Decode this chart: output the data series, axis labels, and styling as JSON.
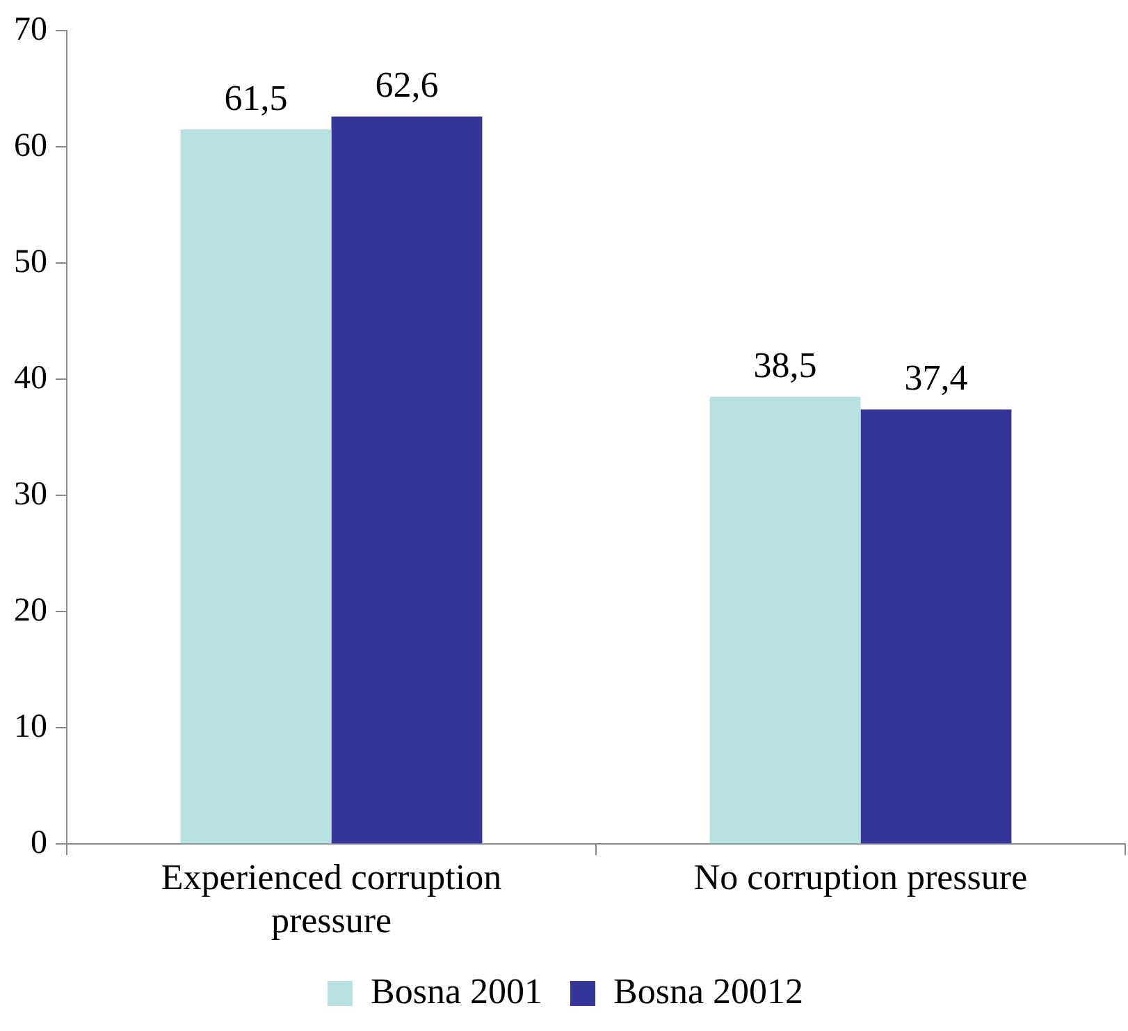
{
  "chart_data": {
    "type": "bar",
    "categories": [
      "Experienced corruption pressure",
      "No corruption pressure"
    ],
    "series": [
      {
        "name": "Bosna 2001",
        "color": "#b7e0e1",
        "values": [
          61.5,
          38.5
        ],
        "value_labels": [
          "61,5",
          "38,5"
        ]
      },
      {
        "name": "Bosna 20012",
        "color": "#363598",
        "values": [
          62.6,
          37.4
        ],
        "value_labels": [
          "62,6",
          "37,4"
        ]
      }
    ],
    "ylim": [
      0,
      70
    ],
    "yticks": [
      0,
      10,
      20,
      30,
      40,
      50,
      60,
      70
    ],
    "grid": false,
    "legend": "bottom"
  }
}
